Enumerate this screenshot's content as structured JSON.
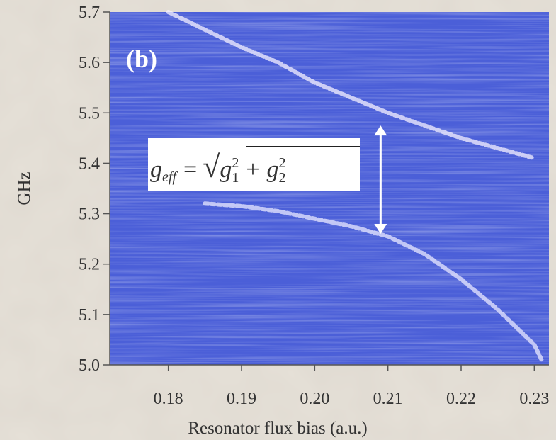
{
  "chart_data": {
    "type": "spectroscopy",
    "panel_label": "(b)",
    "x_label": "Resonator flux bias (a.u.)",
    "y_label": "GHz",
    "xlim": [
      0.172,
      0.232
    ],
    "ylim": [
      5.0,
      5.7
    ],
    "xticks": [
      0.18,
      0.19,
      {
        "value": 0.2,
        "label": "0.20"
      },
      0.21,
      0.22,
      0.23
    ],
    "yticks": [
      {
        "value": 5,
        "label": "5.0"
      },
      5.1,
      5.2,
      5.3,
      5.4,
      5.5,
      5.6,
      5.7
    ],
    "series": [
      {
        "color": "#f4f0ff",
        "x": [
          0.18,
          0.185,
          0.19,
          0.195,
          0.2,
          0.205,
          0.21,
          0.215,
          0.22,
          0.225,
          0.23
        ],
        "values": [
          5.7,
          5.665,
          5.63,
          5.6,
          5.56,
          5.53,
          5.5,
          5.475,
          5.45,
          5.43,
          5.41
        ]
      },
      {
        "color": "#e8e8ff",
        "x": [
          0.185,
          0.19,
          0.195,
          0.2,
          0.205,
          0.21,
          0.215,
          0.22,
          0.225,
          0.23,
          0.231
        ],
        "values": [
          5.32,
          5.315,
          5.305,
          5.29,
          5.275,
          5.255,
          5.22,
          5.17,
          5.11,
          5.04,
          5.01
        ]
      }
    ],
    "arrow": {
      "x": 0.209,
      "y": [
        5.26,
        5.475
      ]
    },
    "formula": {
      "lhs": "g",
      "lhs_sub": "eff",
      "eq": "=",
      "root": "√",
      "t1": "g",
      "t1_sub": "1",
      "t1_sup": "2",
      "plus": "+",
      "t2": "g",
      "t2_sub": "2",
      "t2_sup": "2"
    }
  }
}
